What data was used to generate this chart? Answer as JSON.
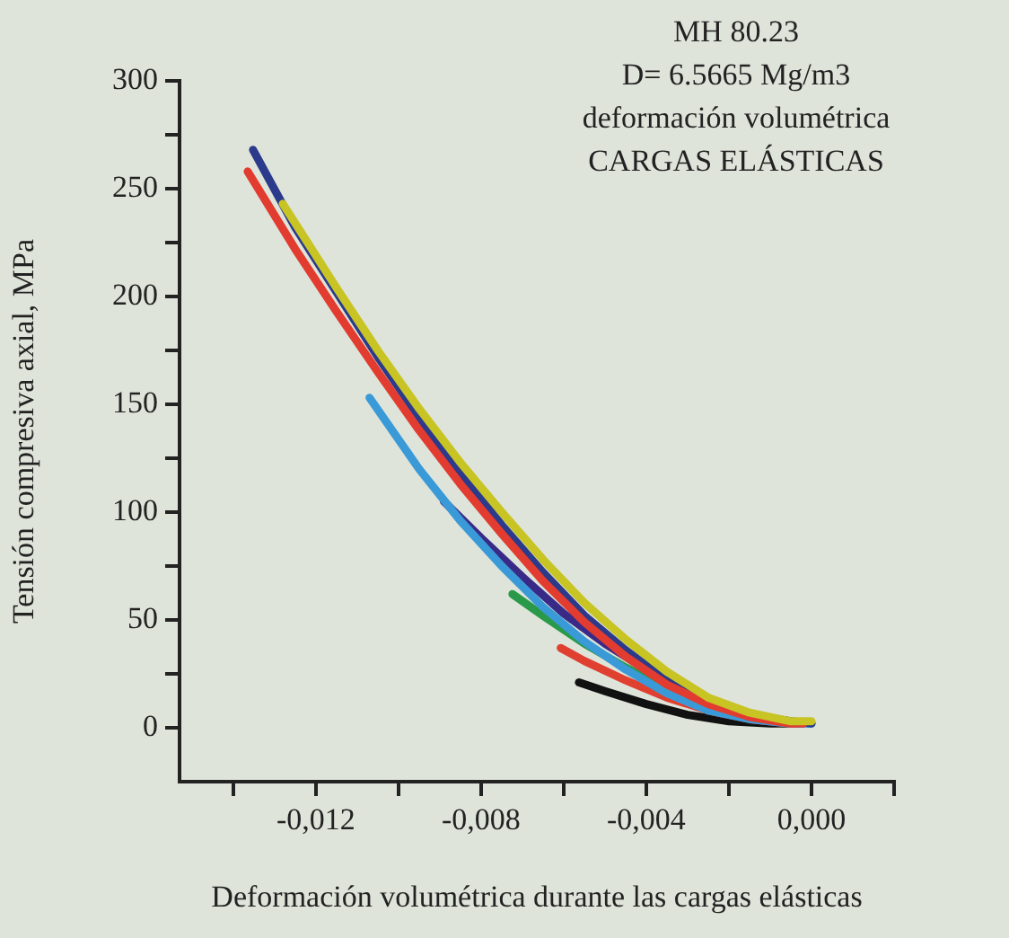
{
  "chart_data": {
    "type": "line",
    "title": "MH 80.23",
    "subtitle": "D= 6.5665 Mg/m3",
    "annotations": [
      "deformación volumétrica",
      "CARGAS ELÁSTICAS"
    ],
    "xlabel": "Deformación volumétrica durante las cargas elásticas",
    "ylabel": "Tensión compresiva axial, MPa",
    "xlim": [
      -0.0153,
      0.002
    ],
    "ylim": [
      -25,
      300
    ],
    "xticks": [
      {
        "value": -0.014,
        "label": null
      },
      {
        "value": -0.012,
        "label": "-0,012"
      },
      {
        "value": -0.01,
        "label": null
      },
      {
        "value": -0.008,
        "label": "-0,008"
      },
      {
        "value": -0.006,
        "label": null
      },
      {
        "value": -0.004,
        "label": "-0,004"
      },
      {
        "value": -0.002,
        "label": null
      },
      {
        "value": 0,
        "label": "0,000"
      },
      {
        "value": 0.002,
        "label": null
      }
    ],
    "yticks": [
      0,
      {
        "value": 25,
        "label": null
      },
      50,
      {
        "value": 75,
        "label": null
      },
      100,
      {
        "value": 125,
        "label": null
      },
      150,
      {
        "value": 175,
        "label": null
      },
      200,
      {
        "value": 225,
        "label": null
      },
      250,
      {
        "value": 275,
        "label": null
      },
      300
    ],
    "grid": false,
    "legend": false,
    "marker": "none",
    "line_style": "solid",
    "series": [
      {
        "color": "#c8c424",
        "x": [
          -0.0128,
          -0.0125,
          -0.0115,
          -0.0105,
          -0.0095,
          -0.0085,
          -0.0075,
          -0.0065,
          -0.0055,
          -0.0045,
          -0.0035,
          -0.0025,
          -0.0015,
          -0.0005,
          0
        ],
        "values": [
          243,
          234,
          204,
          175,
          148,
          123,
          100,
          78,
          58,
          41,
          26,
          14,
          7,
          3,
          3
        ]
      },
      {
        "color": "#e23c30",
        "x": [
          -0.01365,
          -0.0125,
          -0.0115,
          -0.0105,
          -0.0095,
          -0.0085,
          -0.0075,
          -0.0065,
          -0.0055,
          -0.0045,
          -0.0035,
          -0.0025,
          -0.0015,
          -0.0005,
          -0.0002
        ],
        "values": [
          258,
          222,
          193,
          165,
          138,
          113,
          90,
          68,
          49,
          33,
          20,
          11,
          5,
          2,
          2
        ]
      },
      {
        "color": "#2b3a8a",
        "x": [
          -0.01352,
          -0.0125,
          -0.0115,
          -0.0105,
          -0.0095,
          -0.0085,
          -0.0075,
          -0.0065,
          -0.0055,
          -0.0045,
          -0.0035,
          -0.0025,
          -0.0015,
          -0.0005,
          0
        ],
        "values": [
          268,
          232,
          202,
          172,
          144,
          118,
          94,
          72,
          52,
          36,
          22,
          12,
          6,
          3,
          2
        ]
      },
      {
        "color": "#3a9ad8",
        "x": [
          -0.0107,
          -0.0095,
          -0.0085,
          -0.0075,
          -0.0065,
          -0.0055,
          -0.0045,
          -0.0035,
          -0.0025,
          -0.0015,
          -0.0005,
          0
        ],
        "values": [
          153,
          120,
          96,
          75,
          56,
          40,
          27,
          16,
          8,
          4,
          2,
          2
        ]
      },
      {
        "color": "#3a2a88",
        "x": [
          -0.0089,
          -0.008,
          -0.007,
          -0.006,
          -0.005,
          -0.004,
          -0.003,
          -0.002,
          -0.001,
          -0.0002
        ],
        "values": [
          105,
          88,
          70,
          53,
          39,
          27,
          17,
          9,
          4,
          2
        ]
      },
      {
        "color": "#2a9a4a",
        "x": [
          -0.00724,
          -0.0065,
          -0.0055,
          -0.0045,
          -0.0035,
          -0.0025
        ],
        "values": [
          62,
          52,
          39,
          28,
          18,
          10
        ]
      },
      {
        "color": "#e04030",
        "x": [
          -0.00607,
          -0.0055,
          -0.0045,
          -0.0035,
          -0.0025,
          -0.0015,
          -0.0005
        ],
        "values": [
          37,
          31,
          22,
          14,
          8,
          4,
          2
        ]
      },
      {
        "color": "#111111",
        "x": [
          -0.00563,
          -0.005,
          -0.004,
          -0.003,
          -0.002,
          -0.001,
          -0.0003
        ],
        "values": [
          21,
          17,
          11,
          6,
          3,
          2,
          2
        ]
      }
    ]
  }
}
